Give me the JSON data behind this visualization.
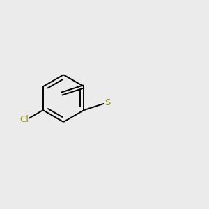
{
  "background_color": "#ebebeb",
  "atom_colors": {
    "Cl_green": "#00bb00",
    "Cl_olive": "#999900",
    "S": "#999900",
    "O": "#ff0000",
    "N": "#0000ee",
    "H": "#000000"
  },
  "bond_color": "#000000",
  "bond_lw": 1.4,
  "font_size": 9.5
}
